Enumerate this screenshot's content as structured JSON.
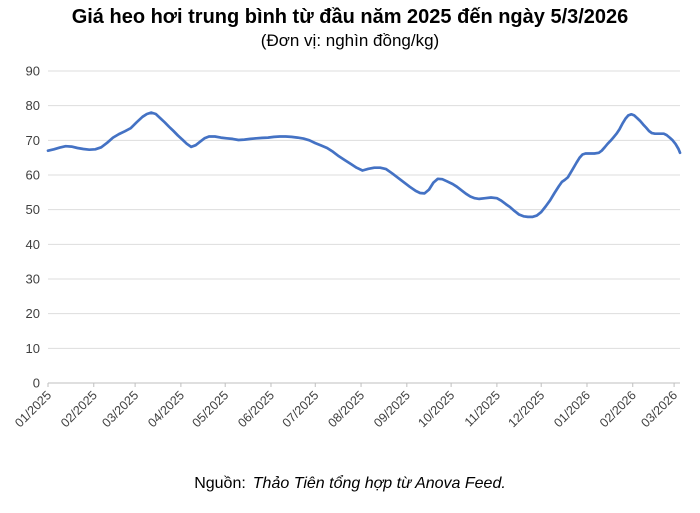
{
  "header": {
    "title": "Giá heo hơi trung bình từ đầu năm 2025 đến ngày 5/3/2026",
    "subtitle": "(Đơn vị: nghìn đồng/kg)"
  },
  "footer": {
    "source_label": "Nguồn:",
    "source_text": "Thảo Tiên tổng hợp từ Anova Feed."
  },
  "chart_data": {
    "type": "line",
    "title": "Giá heo hơi trung bình từ đầu năm 2025 đến ngày 5/3/2026",
    "unit_label": "(Đơn vị: nghìn đồng/kg)",
    "ylim": [
      0,
      90
    ],
    "ytick_interval": 10,
    "grid": true,
    "legend": "none",
    "grid_color": "#dddddd",
    "axis_color": "#bfbfbf",
    "label_color": "#3f3f3f",
    "line_color": "#4472c4",
    "x_tick_labels": [
      "01/2025",
      "02/2025",
      "03/2025",
      "04/2025",
      "05/2025",
      "06/2025",
      "07/2025",
      "08/2025",
      "09/2025",
      "10/2025",
      "11/2025",
      "12/2025",
      "01/2026",
      "02/2026",
      "03/2026"
    ],
    "series": [
      {
        "points": [
          [
            "2025-01-01",
            67.0
          ],
          [
            "2025-01-05",
            67.4
          ],
          [
            "2025-01-09",
            67.9
          ],
          [
            "2025-01-13",
            68.3
          ],
          [
            "2025-01-17",
            68.2
          ],
          [
            "2025-01-21",
            67.8
          ],
          [
            "2025-01-25",
            67.5
          ],
          [
            "2025-01-29",
            67.3
          ],
          [
            "2025-02-02",
            67.4
          ],
          [
            "2025-02-06",
            68.0
          ],
          [
            "2025-02-10",
            69.3
          ],
          [
            "2025-02-14",
            70.8
          ],
          [
            "2025-02-18",
            71.8
          ],
          [
            "2025-02-22",
            72.6
          ],
          [
            "2025-02-26",
            73.5
          ],
          [
            "2025-03-02",
            75.2
          ],
          [
            "2025-03-06",
            76.8
          ],
          [
            "2025-03-09",
            77.6
          ],
          [
            "2025-03-12",
            78.0
          ],
          [
            "2025-03-15",
            77.6
          ],
          [
            "2025-03-18",
            76.4
          ],
          [
            "2025-03-21",
            75.2
          ],
          [
            "2025-03-24",
            73.9
          ],
          [
            "2025-03-27",
            72.7
          ],
          [
            "2025-03-30",
            71.4
          ],
          [
            "2025-04-02",
            70.2
          ],
          [
            "2025-04-05",
            69.0
          ],
          [
            "2025-04-08",
            68.1
          ],
          [
            "2025-04-11",
            68.6
          ],
          [
            "2025-04-14",
            69.6
          ],
          [
            "2025-04-17",
            70.6
          ],
          [
            "2025-04-20",
            71.1
          ],
          [
            "2025-04-24",
            71.1
          ],
          [
            "2025-04-28",
            70.8
          ],
          [
            "2025-05-02",
            70.6
          ],
          [
            "2025-05-06",
            70.4
          ],
          [
            "2025-05-10",
            70.1
          ],
          [
            "2025-05-14",
            70.2
          ],
          [
            "2025-05-18",
            70.4
          ],
          [
            "2025-05-22",
            70.6
          ],
          [
            "2025-05-26",
            70.7
          ],
          [
            "2025-05-30",
            70.8
          ],
          [
            "2025-06-03",
            71.0
          ],
          [
            "2025-06-07",
            71.1
          ],
          [
            "2025-06-11",
            71.1
          ],
          [
            "2025-06-15",
            71.0
          ],
          [
            "2025-06-19",
            70.8
          ],
          [
            "2025-06-23",
            70.5
          ],
          [
            "2025-06-27",
            70.0
          ],
          [
            "2025-07-01",
            69.2
          ],
          [
            "2025-07-05",
            68.5
          ],
          [
            "2025-07-09",
            67.8
          ],
          [
            "2025-07-13",
            66.7
          ],
          [
            "2025-07-17",
            65.4
          ],
          [
            "2025-07-21",
            64.3
          ],
          [
            "2025-07-25",
            63.2
          ],
          [
            "2025-07-29",
            62.1
          ],
          [
            "2025-08-02",
            61.3
          ],
          [
            "2025-08-06",
            61.8
          ],
          [
            "2025-08-10",
            62.1
          ],
          [
            "2025-08-14",
            62.1
          ],
          [
            "2025-08-18",
            61.7
          ],
          [
            "2025-08-22",
            60.5
          ],
          [
            "2025-08-26",
            59.2
          ],
          [
            "2025-08-30",
            57.9
          ],
          [
            "2025-09-03",
            56.6
          ],
          [
            "2025-09-07",
            55.4
          ],
          [
            "2025-09-10",
            54.8
          ],
          [
            "2025-09-13",
            54.7
          ],
          [
            "2025-09-16",
            55.8
          ],
          [
            "2025-09-19",
            57.8
          ],
          [
            "2025-09-22",
            58.9
          ],
          [
            "2025-09-25",
            58.8
          ],
          [
            "2025-09-28",
            58.2
          ],
          [
            "2025-10-02",
            57.4
          ],
          [
            "2025-10-05",
            56.6
          ],
          [
            "2025-10-08",
            55.6
          ],
          [
            "2025-10-11",
            54.6
          ],
          [
            "2025-10-14",
            53.8
          ],
          [
            "2025-10-17",
            53.3
          ],
          [
            "2025-10-20",
            53.1
          ],
          [
            "2025-10-24",
            53.3
          ],
          [
            "2025-10-28",
            53.5
          ],
          [
            "2025-11-01",
            53.3
          ],
          [
            "2025-11-04",
            52.6
          ],
          [
            "2025-11-07",
            51.6
          ],
          [
            "2025-11-10",
            50.7
          ],
          [
            "2025-11-13",
            49.6
          ],
          [
            "2025-11-16",
            48.6
          ],
          [
            "2025-11-19",
            48.1
          ],
          [
            "2025-11-22",
            47.9
          ],
          [
            "2025-11-25",
            47.9
          ],
          [
            "2025-11-28",
            48.3
          ],
          [
            "2025-12-01",
            49.3
          ],
          [
            "2025-12-04",
            50.9
          ],
          [
            "2025-12-07",
            52.7
          ],
          [
            "2025-12-10",
            54.8
          ],
          [
            "2025-12-13",
            56.8
          ],
          [
            "2025-12-15",
            58.0
          ],
          [
            "2025-12-17",
            58.6
          ],
          [
            "2025-12-19",
            59.3
          ],
          [
            "2025-12-22",
            61.4
          ],
          [
            "2025-12-25",
            63.6
          ],
          [
            "2025-12-27",
            65.0
          ],
          [
            "2025-12-29",
            65.9
          ],
          [
            "2025-12-31",
            66.2
          ],
          [
            "2026-01-03",
            66.2
          ],
          [
            "2026-01-06",
            66.2
          ],
          [
            "2026-01-09",
            66.4
          ],
          [
            "2026-01-11",
            67.0
          ],
          [
            "2026-01-13",
            68.0
          ],
          [
            "2026-01-15",
            69.0
          ],
          [
            "2026-01-17",
            69.9
          ],
          [
            "2026-01-19",
            70.9
          ],
          [
            "2026-01-21",
            71.9
          ],
          [
            "2026-01-23",
            73.2
          ],
          [
            "2026-01-25",
            74.8
          ],
          [
            "2026-01-27",
            76.2
          ],
          [
            "2026-01-29",
            77.2
          ],
          [
            "2026-01-31",
            77.5
          ],
          [
            "2026-02-02",
            77.2
          ],
          [
            "2026-02-04",
            76.4
          ],
          [
            "2026-02-06",
            75.6
          ],
          [
            "2026-02-08",
            74.6
          ],
          [
            "2026-02-10",
            73.7
          ],
          [
            "2026-02-12",
            72.7
          ],
          [
            "2026-02-14",
            72.1
          ],
          [
            "2026-02-16",
            71.9
          ],
          [
            "2026-02-18",
            71.9
          ],
          [
            "2026-02-20",
            71.9
          ],
          [
            "2026-02-22",
            71.9
          ],
          [
            "2026-02-24",
            71.5
          ],
          [
            "2026-02-26",
            70.8
          ],
          [
            "2026-02-28",
            70.0
          ],
          [
            "2026-03-02",
            68.9
          ],
          [
            "2026-03-04",
            67.5
          ],
          [
            "2026-03-05",
            66.4
          ]
        ]
      }
    ]
  }
}
